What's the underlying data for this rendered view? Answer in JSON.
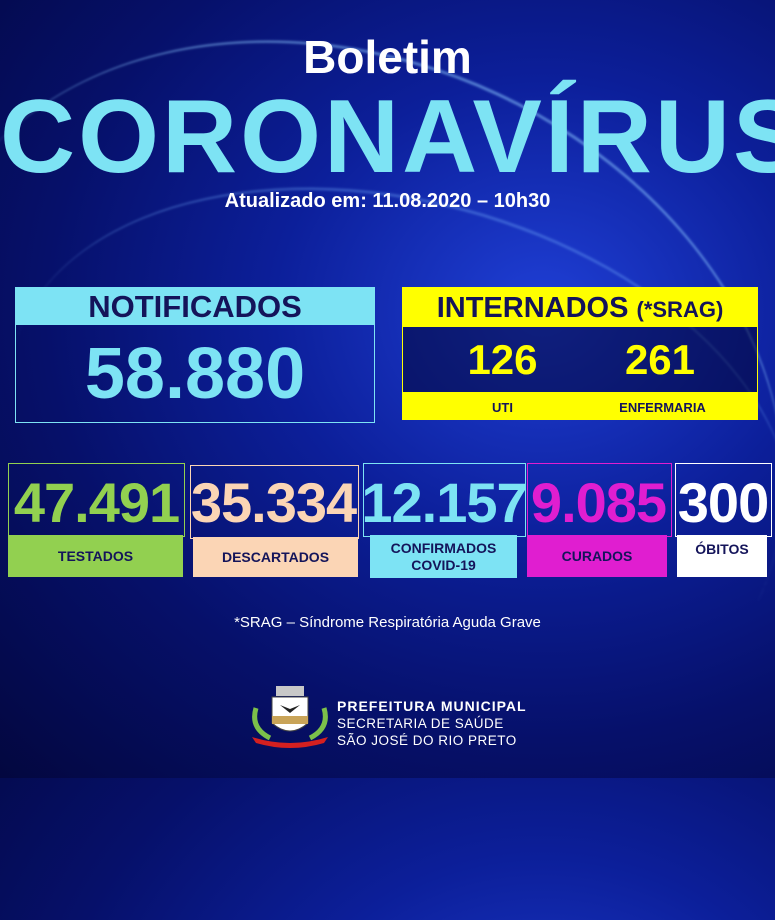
{
  "header": {
    "title_line1": "Boletim",
    "title_line2": "CORONAVÍRUS",
    "updated": "Atualizado em: 11.08.2020 – 10h30"
  },
  "notificados": {
    "label": "NOTIFICADOS",
    "value": "58.880",
    "color": "#7de3f4"
  },
  "internados": {
    "label": "INTERNADOS",
    "note": "(*SRAG)",
    "color": "#ffff00",
    "uti": {
      "value": "126",
      "label": "UTI"
    },
    "enfermaria": {
      "value": "261",
      "label": "ENFERMARIA"
    }
  },
  "stats": [
    {
      "value": "47.491",
      "label": "TESTADOS",
      "color": "#92d050"
    },
    {
      "value": "35.334",
      "label": "DESCARTADOS",
      "color": "#fbd5b5"
    },
    {
      "value": "12.157",
      "label": "CONFIRMADOS",
      "label2": "COVID-19",
      "color": "#7de3f4"
    },
    {
      "value": "9.085",
      "label": "CURADOS",
      "color": "#e01ed0"
    },
    {
      "value": "300",
      "label": "ÓBITOS",
      "color": "#ffffff"
    }
  ],
  "footnote": "*SRAG – Síndrome Respiratória Aguda Grave",
  "organization": {
    "line1": "PREFEITURA MUNICIPAL",
    "line2": "SECRETARIA DE SAÚDE",
    "line3": "SÃO JOSÉ DO RIO PRETO",
    "logo_text": "SÃO JOSÉ DO RIO PRETO"
  }
}
